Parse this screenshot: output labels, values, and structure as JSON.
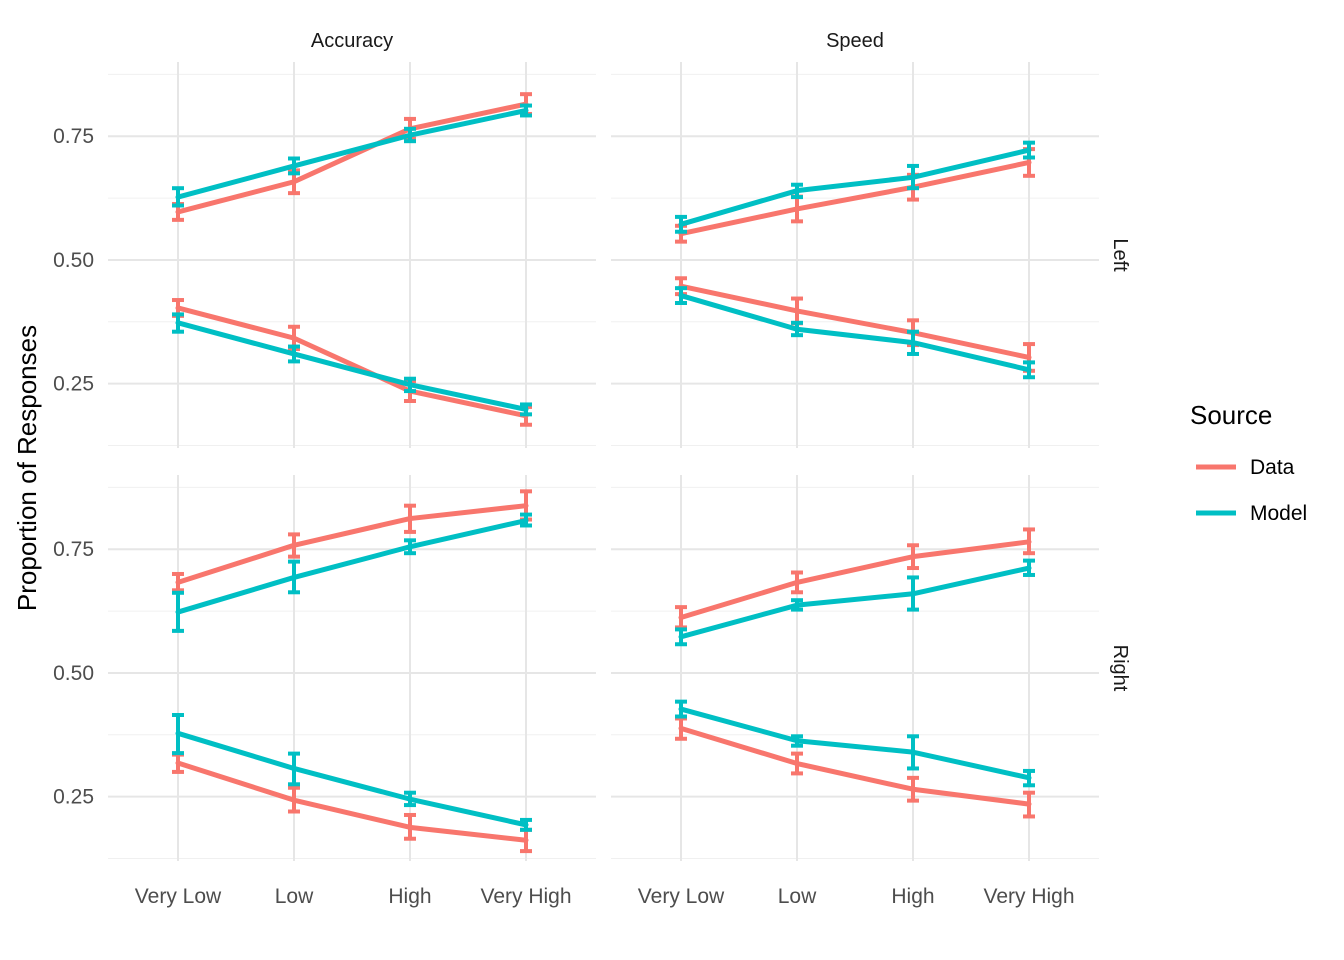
{
  "chart_data": {
    "type": "line",
    "ylabel": "Proportion of Responses",
    "xlabel": "",
    "categories": [
      "Very Low",
      "Low",
      "High",
      "Very High"
    ],
    "y_ticks": [
      0.25,
      0.5,
      0.75
    ],
    "y_tick_labels": [
      "0.25",
      "0.50",
      "0.75"
    ],
    "ylim": [
      0.12,
      0.9
    ],
    "column_facets": [
      "Accuracy",
      "Speed"
    ],
    "row_facets": [
      "Left",
      "Right"
    ],
    "legend": {
      "title": "Source",
      "position": "right",
      "entries": [
        {
          "name": "Data",
          "color": "#F8766D"
        },
        {
          "name": "Model",
          "color": "#00BFC4"
        }
      ]
    },
    "grid": true,
    "panels": [
      {
        "col": "Accuracy",
        "row": "Left",
        "lines": [
          {
            "source": "Data",
            "values": [
              0.597,
              0.658,
              0.765,
              0.815
            ],
            "lower": [
              0.581,
              0.635,
              0.745,
              0.795
            ],
            "upper": [
              0.613,
              0.681,
              0.785,
              0.835
            ]
          },
          {
            "source": "Model",
            "values": [
              0.627,
              0.69,
              0.752,
              0.802
            ],
            "lower": [
              0.61,
              0.675,
              0.74,
              0.792
            ],
            "upper": [
              0.645,
              0.705,
              0.765,
              0.812
            ]
          },
          {
            "source": "Data",
            "values": [
              0.403,
              0.342,
              0.235,
              0.185
            ],
            "lower": [
              0.387,
              0.32,
              0.215,
              0.167
            ],
            "upper": [
              0.419,
              0.365,
              0.255,
              0.203
            ]
          },
          {
            "source": "Model",
            "values": [
              0.373,
              0.31,
              0.248,
              0.198
            ],
            "lower": [
              0.355,
              0.295,
              0.235,
              0.188
            ],
            "upper": [
              0.39,
              0.325,
              0.26,
              0.208
            ]
          }
        ]
      },
      {
        "col": "Speed",
        "row": "Left",
        "lines": [
          {
            "source": "Data",
            "values": [
              0.553,
              0.603,
              0.647,
              0.697
            ],
            "lower": [
              0.537,
              0.578,
              0.622,
              0.67
            ],
            "upper": [
              0.569,
              0.628,
              0.672,
              0.724
            ]
          },
          {
            "source": "Model",
            "values": [
              0.572,
              0.64,
              0.667,
              0.722
            ],
            "lower": [
              0.557,
              0.627,
              0.645,
              0.707
            ],
            "upper": [
              0.587,
              0.652,
              0.69,
              0.737
            ]
          },
          {
            "source": "Data",
            "values": [
              0.447,
              0.397,
              0.353,
              0.303
            ],
            "lower": [
              0.431,
              0.372,
              0.328,
              0.276
            ],
            "upper": [
              0.463,
              0.422,
              0.378,
              0.33
            ]
          },
          {
            "source": "Model",
            "values": [
              0.428,
              0.36,
              0.333,
              0.278
            ],
            "lower": [
              0.413,
              0.348,
              0.31,
              0.263
            ],
            "upper": [
              0.443,
              0.373,
              0.355,
              0.293
            ]
          }
        ]
      },
      {
        "col": "Accuracy",
        "row": "Right",
        "lines": [
          {
            "source": "Data",
            "values": [
              0.683,
              0.758,
              0.812,
              0.838
            ],
            "lower": [
              0.667,
              0.735,
              0.785,
              0.81
            ],
            "upper": [
              0.7,
              0.78,
              0.838,
              0.867
            ]
          },
          {
            "source": "Model",
            "values": [
              0.623,
              0.693,
              0.755,
              0.808
            ],
            "lower": [
              0.585,
              0.663,
              0.742,
              0.798
            ],
            "upper": [
              0.662,
              0.725,
              0.768,
              0.82
            ]
          },
          {
            "source": "Data",
            "values": [
              0.318,
              0.243,
              0.188,
              0.162
            ],
            "lower": [
              0.3,
              0.22,
              0.165,
              0.14
            ],
            "upper": [
              0.335,
              0.268,
              0.213,
              0.183
            ]
          },
          {
            "source": "Model",
            "values": [
              0.378,
              0.307,
              0.245,
              0.193
            ],
            "lower": [
              0.338,
              0.275,
              0.233,
              0.183
            ],
            "upper": [
              0.415,
              0.337,
              0.258,
              0.203
            ]
          }
        ]
      },
      {
        "col": "Speed",
        "row": "Right",
        "lines": [
          {
            "source": "Data",
            "values": [
              0.612,
              0.683,
              0.735,
              0.765
            ],
            "lower": [
              0.592,
              0.663,
              0.712,
              0.742
            ],
            "upper": [
              0.633,
              0.703,
              0.758,
              0.79
            ]
          },
          {
            "source": "Model",
            "values": [
              0.573,
              0.637,
              0.66,
              0.712
            ],
            "lower": [
              0.558,
              0.628,
              0.628,
              0.698
            ],
            "upper": [
              0.588,
              0.647,
              0.693,
              0.727
            ]
          },
          {
            "source": "Data",
            "values": [
              0.388,
              0.317,
              0.265,
              0.235
            ],
            "lower": [
              0.367,
              0.297,
              0.242,
              0.21
            ],
            "upper": [
              0.408,
              0.337,
              0.288,
              0.258
            ]
          },
          {
            "source": "Model",
            "values": [
              0.427,
              0.363,
              0.34,
              0.288
            ],
            "lower": [
              0.412,
              0.353,
              0.307,
              0.273
            ],
            "upper": [
              0.442,
              0.372,
              0.372,
              0.302
            ]
          }
        ]
      }
    ]
  }
}
